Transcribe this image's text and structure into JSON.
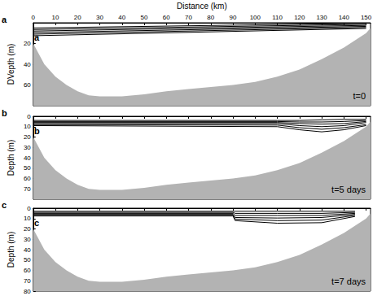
{
  "chart_data": [
    {
      "type": "line",
      "xlabel": "Distance (km)",
      "ylabel": "DVepth (m)",
      "panel_label": "a",
      "time_label": "t=0",
      "xlim": [
        0,
        152
      ],
      "xticks": [
        0,
        10,
        20,
        30,
        40,
        50,
        60,
        70,
        80,
        90,
        100,
        110,
        120,
        130,
        140,
        150
      ],
      "ylim": [
        0,
        80
      ],
      "yticks": [
        20,
        40,
        60
      ],
      "series": [
        {
          "type": "area",
          "color": "#b3b3b3",
          "x": [
            0,
            5,
            10,
            15,
            20,
            25,
            30,
            40,
            50,
            60,
            70,
            80,
            90,
            100,
            110,
            120,
            130,
            140,
            150,
            152
          ],
          "values": [
            20,
            40,
            52,
            60,
            66,
            70,
            71,
            71,
            69,
            66,
            64,
            62,
            60,
            57,
            52,
            45,
            35,
            24,
            10,
            5
          ]
        },
        {
          "type": "line",
          "color": "#000000",
          "x": [
            0,
            150
          ],
          "values": [
            5,
            0.5
          ]
        },
        {
          "type": "line",
          "color": "#000000",
          "x": [
            0,
            150
          ],
          "values": [
            6.5,
            1.5
          ]
        },
        {
          "type": "line",
          "color": "#000000",
          "x": [
            0,
            150
          ],
          "values": [
            8,
            2.5
          ]
        },
        {
          "type": "line",
          "color": "#000000",
          "x": [
            0,
            150
          ],
          "values": [
            9.5,
            3.5
          ]
        },
        {
          "type": "line",
          "color": "#000000",
          "x": [
            0,
            150
          ],
          "values": [
            11,
            4.5
          ]
        },
        {
          "type": "line",
          "color": "#000000",
          "x": [
            0,
            150
          ],
          "values": [
            12.5,
            5.5
          ]
        }
      ]
    },
    {
      "type": "line",
      "ylabel": "Depth (m)",
      "panel_label": "b",
      "time_label": "t=5 days",
      "tick_labels": "y",
      "xlim": [
        0,
        152
      ],
      "xticks": [
        0,
        10,
        20,
        30,
        40,
        50,
        60,
        70,
        80,
        90,
        100,
        110,
        120,
        130,
        140,
        150
      ],
      "ylim": [
        0,
        80
      ],
      "yticks": [
        0,
        10,
        20,
        30,
        40,
        50,
        60,
        70
      ],
      "series": [
        {
          "type": "area",
          "color": "#b3b3b3",
          "x": [
            0,
            5,
            10,
            15,
            20,
            25,
            30,
            40,
            50,
            60,
            70,
            80,
            90,
            100,
            110,
            120,
            130,
            140,
            150,
            152
          ],
          "values": [
            20,
            40,
            52,
            60,
            66,
            70,
            71,
            71,
            69,
            66,
            64,
            62,
            60,
            57,
            52,
            45,
            35,
            24,
            10,
            5
          ]
        },
        {
          "type": "line",
          "color": "#000000",
          "x": [
            0,
            110,
            120,
            130,
            140,
            150
          ],
          "values": [
            4,
            4,
            4,
            3.5,
            3,
            3
          ]
        },
        {
          "type": "line",
          "color": "#000000",
          "x": [
            0,
            110,
            120,
            130,
            140,
            150
          ],
          "values": [
            5,
            5,
            5.5,
            5.5,
            5,
            4
          ]
        },
        {
          "type": "line",
          "color": "#000000",
          "x": [
            0,
            110,
            120,
            130,
            140,
            150
          ],
          "values": [
            6,
            6,
            7,
            7.5,
            7,
            5
          ]
        },
        {
          "type": "line",
          "color": "#000000",
          "x": [
            0,
            110,
            120,
            130,
            140,
            150
          ],
          "values": [
            7,
            7,
            9,
            10,
            9,
            6
          ]
        },
        {
          "type": "line",
          "color": "#000000",
          "x": [
            0,
            110,
            120,
            130,
            140,
            150
          ],
          "values": [
            8,
            8.5,
            11,
            12.5,
            11,
            8
          ]
        },
        {
          "type": "line",
          "color": "#000000",
          "x": [
            0,
            110,
            120,
            130,
            140,
            150
          ],
          "values": [
            9,
            10,
            13,
            15,
            13,
            9
          ]
        }
      ]
    },
    {
      "type": "line",
      "ylabel": "Depth (m)",
      "panel_label": "c",
      "time_label": "t=7 days",
      "tick_labels": "y",
      "xlim": [
        0,
        152
      ],
      "xticks": [
        0,
        10,
        20,
        30,
        40,
        50,
        60,
        70,
        80,
        90,
        100,
        110,
        120,
        130,
        140,
        150
      ],
      "ylim": [
        0,
        80
      ],
      "yticks": [
        0,
        10,
        20,
        30,
        40,
        50,
        60,
        70,
        80
      ],
      "series": [
        {
          "type": "area",
          "color": "#b3b3b3",
          "x": [
            0,
            5,
            10,
            15,
            20,
            25,
            30,
            40,
            50,
            60,
            70,
            80,
            90,
            100,
            110,
            120,
            130,
            140,
            150,
            152
          ],
          "values": [
            20,
            40,
            52,
            60,
            66,
            70,
            71,
            71,
            69,
            66,
            64,
            62,
            60,
            57,
            52,
            45,
            35,
            24,
            10,
            5
          ]
        },
        {
          "type": "line",
          "color": "#000000",
          "x": [
            0,
            90,
            91,
            110,
            130,
            145
          ],
          "values": [
            3,
            3,
            3,
            3,
            3,
            3
          ]
        },
        {
          "type": "line",
          "color": "#000000",
          "x": [
            0,
            90,
            91,
            110,
            130,
            145
          ],
          "values": [
            4,
            4,
            5,
            5,
            5,
            4
          ]
        },
        {
          "type": "line",
          "color": "#000000",
          "x": [
            0,
            90,
            91,
            110,
            130,
            145
          ],
          "values": [
            5,
            5,
            7,
            7,
            7,
            5
          ]
        },
        {
          "type": "line",
          "color": "#000000",
          "x": [
            0,
            90,
            91,
            110,
            130,
            145
          ],
          "values": [
            6,
            6,
            9,
            9.5,
            9,
            6
          ]
        },
        {
          "type": "line",
          "color": "#000000",
          "x": [
            0,
            90,
            91,
            110,
            130,
            145
          ],
          "values": [
            7,
            7,
            10.5,
            12,
            11.5,
            7
          ]
        },
        {
          "type": "line",
          "color": "#000000",
          "x": [
            0,
            90,
            91,
            110,
            130,
            145
          ],
          "values": [
            7.5,
            7.5,
            12,
            14.5,
            14,
            8
          ]
        }
      ]
    }
  ]
}
